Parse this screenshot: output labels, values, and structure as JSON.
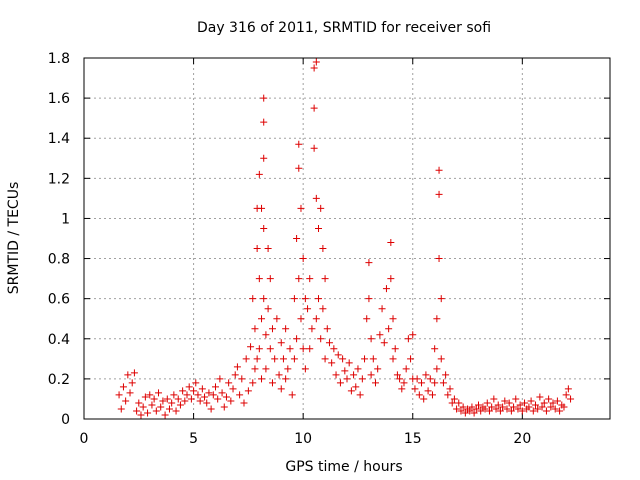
{
  "chart_data": {
    "type": "scatter",
    "title": "Day 316 of 2011, SRMTID for receiver sofi",
    "xlabel": "GPS time / hours",
    "ylabel": "SRMTID / TECUs",
    "xlim": [
      0,
      24
    ],
    "ylim": [
      0,
      1.8
    ],
    "x_ticks": [
      0,
      5,
      10,
      15,
      20
    ],
    "x_tick_labels": [
      "0",
      "5",
      "10",
      "15",
      "20"
    ],
    "y_ticks": [
      0,
      0.2,
      0.4,
      0.6,
      0.8,
      1.0,
      1.2,
      1.4,
      1.6,
      1.8
    ],
    "y_tick_labels": [
      "0",
      "0.2",
      "0.4",
      "0.6",
      "0.8",
      "1",
      "1.2",
      "1.4",
      "1.6",
      "1.8"
    ],
    "grid": true,
    "marker": "+",
    "marker_color": "#dd0000",
    "series": [
      {
        "name": "SRMTID",
        "points": [
          [
            1.6,
            0.12
          ],
          [
            1.7,
            0.05
          ],
          [
            1.8,
            0.16
          ],
          [
            1.9,
            0.09
          ],
          [
            2.0,
            0.22
          ],
          [
            2.1,
            0.13
          ],
          [
            2.2,
            0.18
          ],
          [
            2.3,
            0.23
          ],
          [
            2.4,
            0.04
          ],
          [
            2.5,
            0.08
          ],
          [
            2.6,
            0.02
          ],
          [
            2.7,
            0.06
          ],
          [
            2.8,
            0.11
          ],
          [
            2.9,
            0.03
          ],
          [
            3.0,
            0.12
          ],
          [
            3.1,
            0.07
          ],
          [
            3.2,
            0.1
          ],
          [
            3.3,
            0.04
          ],
          [
            3.4,
            0.13
          ],
          [
            3.5,
            0.06
          ],
          [
            3.6,
            0.09
          ],
          [
            3.7,
            0.02
          ],
          [
            3.8,
            0.1
          ],
          [
            3.9,
            0.05
          ],
          [
            4.0,
            0.08
          ],
          [
            4.1,
            0.12
          ],
          [
            4.2,
            0.04
          ],
          [
            4.3,
            0.1
          ],
          [
            4.4,
            0.07
          ],
          [
            4.5,
            0.14
          ],
          [
            4.6,
            0.09
          ],
          [
            4.7,
            0.12
          ],
          [
            4.8,
            0.16
          ],
          [
            4.9,
            0.1
          ],
          [
            5.0,
            0.14
          ],
          [
            5.1,
            0.18
          ],
          [
            5.2,
            0.12
          ],
          [
            5.3,
            0.09
          ],
          [
            5.4,
            0.15
          ],
          [
            5.5,
            0.11
          ],
          [
            5.6,
            0.08
          ],
          [
            5.7,
            0.13
          ],
          [
            5.8,
            0.05
          ],
          [
            5.9,
            0.12
          ],
          [
            6.0,
            0.16
          ],
          [
            6.1,
            0.1
          ],
          [
            6.2,
            0.2
          ],
          [
            6.3,
            0.13
          ],
          [
            6.4,
            0.06
          ],
          [
            6.5,
            0.11
          ],
          [
            6.6,
            0.18
          ],
          [
            6.7,
            0.09
          ],
          [
            6.8,
            0.15
          ],
          [
            6.9,
            0.22
          ],
          [
            7.0,
            0.26
          ],
          [
            7.1,
            0.12
          ],
          [
            7.2,
            0.2
          ],
          [
            7.3,
            0.08
          ],
          [
            7.4,
            0.3
          ],
          [
            7.5,
            0.14
          ],
          [
            7.6,
            0.36
          ],
          [
            7.7,
            0.18
          ],
          [
            7.7,
            0.6
          ],
          [
            7.8,
            0.45
          ],
          [
            7.8,
            0.25
          ],
          [
            7.9,
            1.05
          ],
          [
            7.9,
            0.85
          ],
          [
            7.9,
            0.3
          ],
          [
            8.0,
            1.22
          ],
          [
            8.0,
            0.7
          ],
          [
            8.0,
            0.35
          ],
          [
            8.1,
            1.05
          ],
          [
            8.1,
            0.5
          ],
          [
            8.1,
            0.2
          ],
          [
            8.2,
            1.6
          ],
          [
            8.2,
            1.48
          ],
          [
            8.2,
            1.3
          ],
          [
            8.2,
            0.95
          ],
          [
            8.2,
            0.6
          ],
          [
            8.3,
            0.42
          ],
          [
            8.3,
            0.25
          ],
          [
            8.4,
            0.85
          ],
          [
            8.4,
            0.55
          ],
          [
            8.5,
            0.7
          ],
          [
            8.5,
            0.35
          ],
          [
            8.6,
            0.45
          ],
          [
            8.6,
            0.18
          ],
          [
            8.7,
            0.3
          ],
          [
            8.8,
            0.5
          ],
          [
            8.9,
            0.22
          ],
          [
            9.0,
            0.38
          ],
          [
            9.0,
            0.15
          ],
          [
            9.1,
            0.3
          ],
          [
            9.2,
            0.45
          ],
          [
            9.2,
            0.2
          ],
          [
            9.3,
            0.25
          ],
          [
            9.4,
            0.35
          ],
          [
            9.5,
            0.12
          ],
          [
            9.6,
            0.6
          ],
          [
            9.6,
            0.3
          ],
          [
            9.7,
            0.9
          ],
          [
            9.7,
            0.4
          ],
          [
            9.8,
            1.37
          ],
          [
            9.8,
            1.25
          ],
          [
            9.8,
            0.7
          ],
          [
            9.9,
            1.05
          ],
          [
            9.9,
            0.5
          ],
          [
            10.0,
            0.8
          ],
          [
            10.0,
            0.35
          ],
          [
            10.1,
            0.6
          ],
          [
            10.1,
            0.25
          ],
          [
            10.2,
            0.55
          ],
          [
            10.3,
            0.7
          ],
          [
            10.3,
            0.35
          ],
          [
            10.4,
            0.45
          ],
          [
            10.5,
            1.75
          ],
          [
            10.5,
            1.55
          ],
          [
            10.5,
            1.35
          ],
          [
            10.6,
            1.78
          ],
          [
            10.6,
            1.1
          ],
          [
            10.6,
            0.5
          ],
          [
            10.7,
            0.95
          ],
          [
            10.7,
            0.6
          ],
          [
            10.8,
            1.05
          ],
          [
            10.8,
            0.4
          ],
          [
            10.9,
            0.85
          ],
          [
            10.9,
            0.55
          ],
          [
            11.0,
            0.7
          ],
          [
            11.0,
            0.3
          ],
          [
            11.1,
            0.45
          ],
          [
            11.2,
            0.38
          ],
          [
            11.3,
            0.28
          ],
          [
            11.4,
            0.35
          ],
          [
            11.5,
            0.22
          ],
          [
            11.6,
            0.32
          ],
          [
            11.7,
            0.18
          ],
          [
            11.8,
            0.3
          ],
          [
            11.9,
            0.24
          ],
          [
            12.0,
            0.2
          ],
          [
            12.1,
            0.28
          ],
          [
            12.2,
            0.14
          ],
          [
            12.3,
            0.22
          ],
          [
            12.4,
            0.16
          ],
          [
            12.5,
            0.25
          ],
          [
            12.6,
            0.12
          ],
          [
            12.7,
            0.2
          ],
          [
            12.8,
            0.3
          ],
          [
            12.9,
            0.5
          ],
          [
            13.0,
            0.78
          ],
          [
            13.0,
            0.6
          ],
          [
            13.1,
            0.4
          ],
          [
            13.1,
            0.22
          ],
          [
            13.2,
            0.3
          ],
          [
            13.3,
            0.18
          ],
          [
            13.4,
            0.25
          ],
          [
            13.5,
            0.42
          ],
          [
            13.6,
            0.55
          ],
          [
            13.7,
            0.38
          ],
          [
            13.8,
            0.65
          ],
          [
            13.9,
            0.45
          ],
          [
            14.0,
            0.88
          ],
          [
            14.0,
            0.7
          ],
          [
            14.1,
            0.5
          ],
          [
            14.1,
            0.3
          ],
          [
            14.2,
            0.35
          ],
          [
            14.3,
            0.22
          ],
          [
            14.4,
            0.2
          ],
          [
            14.5,
            0.15
          ],
          [
            14.6,
            0.18
          ],
          [
            14.7,
            0.25
          ],
          [
            14.8,
            0.4
          ],
          [
            14.9,
            0.3
          ],
          [
            15.0,
            0.42
          ],
          [
            15.0,
            0.2
          ],
          [
            15.1,
            0.15
          ],
          [
            15.2,
            0.2
          ],
          [
            15.3,
            0.12
          ],
          [
            15.4,
            0.18
          ],
          [
            15.5,
            0.1
          ],
          [
            15.6,
            0.22
          ],
          [
            15.7,
            0.14
          ],
          [
            15.8,
            0.2
          ],
          [
            15.9,
            0.12
          ],
          [
            16.0,
            0.35
          ],
          [
            16.0,
            0.18
          ],
          [
            16.1,
            0.5
          ],
          [
            16.1,
            0.25
          ],
          [
            16.2,
            1.24
          ],
          [
            16.2,
            1.12
          ],
          [
            16.2,
            0.8
          ],
          [
            16.3,
            0.6
          ],
          [
            16.3,
            0.3
          ],
          [
            16.4,
            0.18
          ],
          [
            16.5,
            0.22
          ],
          [
            16.6,
            0.12
          ],
          [
            16.7,
            0.15
          ],
          [
            16.8,
            0.08
          ],
          [
            16.9,
            0.1
          ],
          [
            17.0,
            0.05
          ],
          [
            17.1,
            0.08
          ],
          [
            17.2,
            0.04
          ],
          [
            17.3,
            0.06
          ],
          [
            17.4,
            0.03
          ],
          [
            17.5,
            0.05
          ],
          [
            17.6,
            0.04
          ],
          [
            17.7,
            0.06
          ],
          [
            17.8,
            0.03
          ],
          [
            17.9,
            0.05
          ],
          [
            18.0,
            0.07
          ],
          [
            18.1,
            0.04
          ],
          [
            18.2,
            0.06
          ],
          [
            18.3,
            0.05
          ],
          [
            18.4,
            0.08
          ],
          [
            18.5,
            0.04
          ],
          [
            18.6,
            0.06
          ],
          [
            18.7,
            0.1
          ],
          [
            18.8,
            0.05
          ],
          [
            18.9,
            0.07
          ],
          [
            19.0,
            0.04
          ],
          [
            19.1,
            0.06
          ],
          [
            19.2,
            0.09
          ],
          [
            19.3,
            0.05
          ],
          [
            19.4,
            0.08
          ],
          [
            19.5,
            0.04
          ],
          [
            19.6,
            0.06
          ],
          [
            19.7,
            0.1
          ],
          [
            19.8,
            0.05
          ],
          [
            19.9,
            0.07
          ],
          [
            20.0,
            0.04
          ],
          [
            20.1,
            0.08
          ],
          [
            20.2,
            0.05
          ],
          [
            20.3,
            0.06
          ],
          [
            20.4,
            0.09
          ],
          [
            20.5,
            0.04
          ],
          [
            20.6,
            0.07
          ],
          [
            20.7,
            0.05
          ],
          [
            20.8,
            0.11
          ],
          [
            20.9,
            0.06
          ],
          [
            21.0,
            0.08
          ],
          [
            21.1,
            0.04
          ],
          [
            21.2,
            0.1
          ],
          [
            21.3,
            0.06
          ],
          [
            21.4,
            0.08
          ],
          [
            21.5,
            0.05
          ],
          [
            21.6,
            0.09
          ],
          [
            21.7,
            0.04
          ],
          [
            21.8,
            0.07
          ],
          [
            21.9,
            0.06
          ],
          [
            22.0,
            0.12
          ],
          [
            22.1,
            0.15
          ],
          [
            22.2,
            0.1
          ]
        ]
      }
    ]
  }
}
